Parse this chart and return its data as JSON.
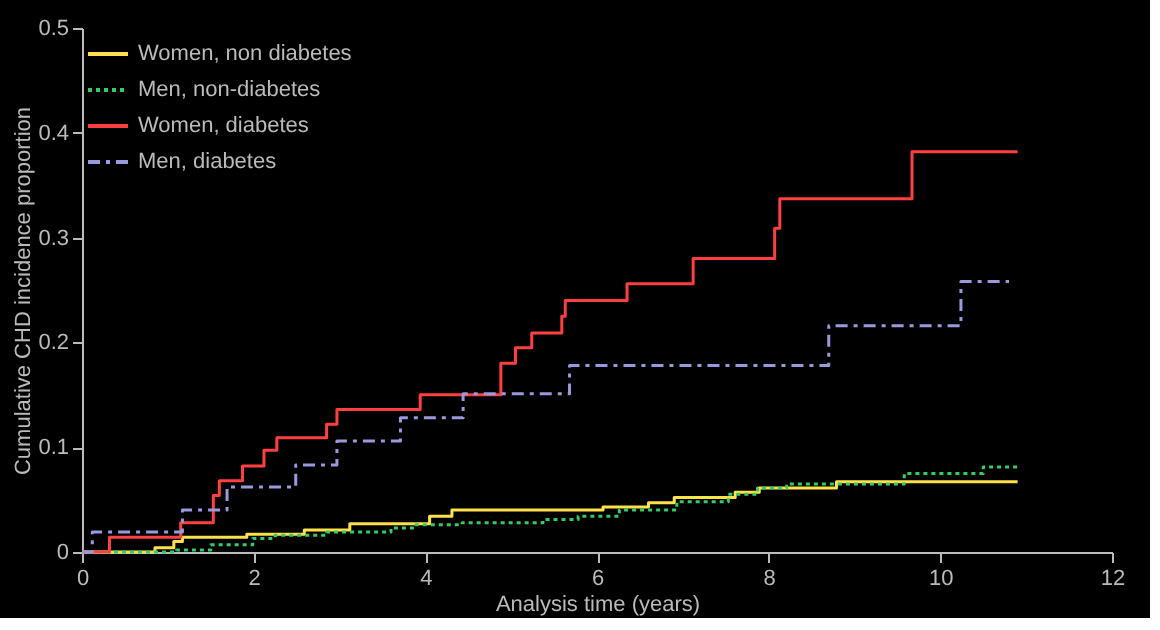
{
  "chart_data": {
    "type": "step",
    "xlabel": "Analysis time (years)",
    "ylabel": "Cumulative CHD incidence proportion",
    "xlim": [
      0,
      12
    ],
    "xticks": [
      0,
      2,
      4,
      6,
      8,
      10,
      12
    ],
    "ylim": [
      0,
      0.5
    ],
    "yticks": [
      0,
      0.1,
      0.2,
      0.3,
      0.4,
      0.5
    ],
    "grid": false,
    "legend": "top left",
    "marker": "none",
    "series": [
      {
        "name": "Women, non diabetes",
        "color": "#ffe14a",
        "line_style": "solid",
        "x": [
          0,
          0.85,
          1.07,
          1.17,
          1.92,
          2.59,
          3.12,
          4.05,
          4.31,
          6.07,
          6.6,
          6.9,
          7.61,
          7.89,
          8.79,
          10.9
        ],
        "values": [
          0,
          0.004,
          0.01,
          0.014,
          0.017,
          0.021,
          0.027,
          0.034,
          0.04,
          0.043,
          0.047,
          0.052,
          0.057,
          0.061,
          0.067,
          0.067
        ]
      },
      {
        "name": "Men, non-diabetes",
        "color": "#33cc66",
        "line_style": "dotted",
        "x": [
          0,
          1.1,
          1.5,
          1.99,
          2.25,
          2.85,
          3.6,
          3.87,
          4.43,
          5.37,
          5.78,
          6.26,
          6.93,
          7.53,
          7.87,
          8.21,
          9.58,
          10.5,
          10.9
        ],
        "values": [
          0,
          0.002,
          0.007,
          0.013,
          0.016,
          0.019,
          0.023,
          0.026,
          0.028,
          0.031,
          0.034,
          0.04,
          0.048,
          0.055,
          0.061,
          0.065,
          0.075,
          0.081,
          0.081
        ]
      },
      {
        "name": "Women, diabetes",
        "color": "#ff4040",
        "line_style": "solid",
        "x": [
          0,
          0.32,
          1.15,
          1.53,
          1.6,
          1.87,
          2.12,
          2.27,
          2.85,
          2.97,
          3.94,
          4.88,
          5.05,
          5.24,
          5.59,
          5.63,
          6.35,
          7.12,
          8.07,
          8.13,
          9.67,
          10.9
        ],
        "values": [
          0,
          0.014,
          0.028,
          0.054,
          0.068,
          0.082,
          0.097,
          0.109,
          0.122,
          0.136,
          0.15,
          0.18,
          0.195,
          0.209,
          0.225,
          0.24,
          0.256,
          0.28,
          0.309,
          0.337,
          0.382,
          0.382
        ]
      },
      {
        "name": "Men, diabetes",
        "color": "#9999dd",
        "line_style": "dashed",
        "x": [
          0,
          0.12,
          1.17,
          1.69,
          2.49,
          2.97,
          3.71,
          4.44,
          5.68,
          8.7,
          10.24,
          10.8
        ],
        "values": [
          0,
          0.019,
          0.04,
          0.062,
          0.083,
          0.106,
          0.128,
          0.151,
          0.178,
          0.216,
          0.258,
          0.258
        ]
      }
    ]
  }
}
